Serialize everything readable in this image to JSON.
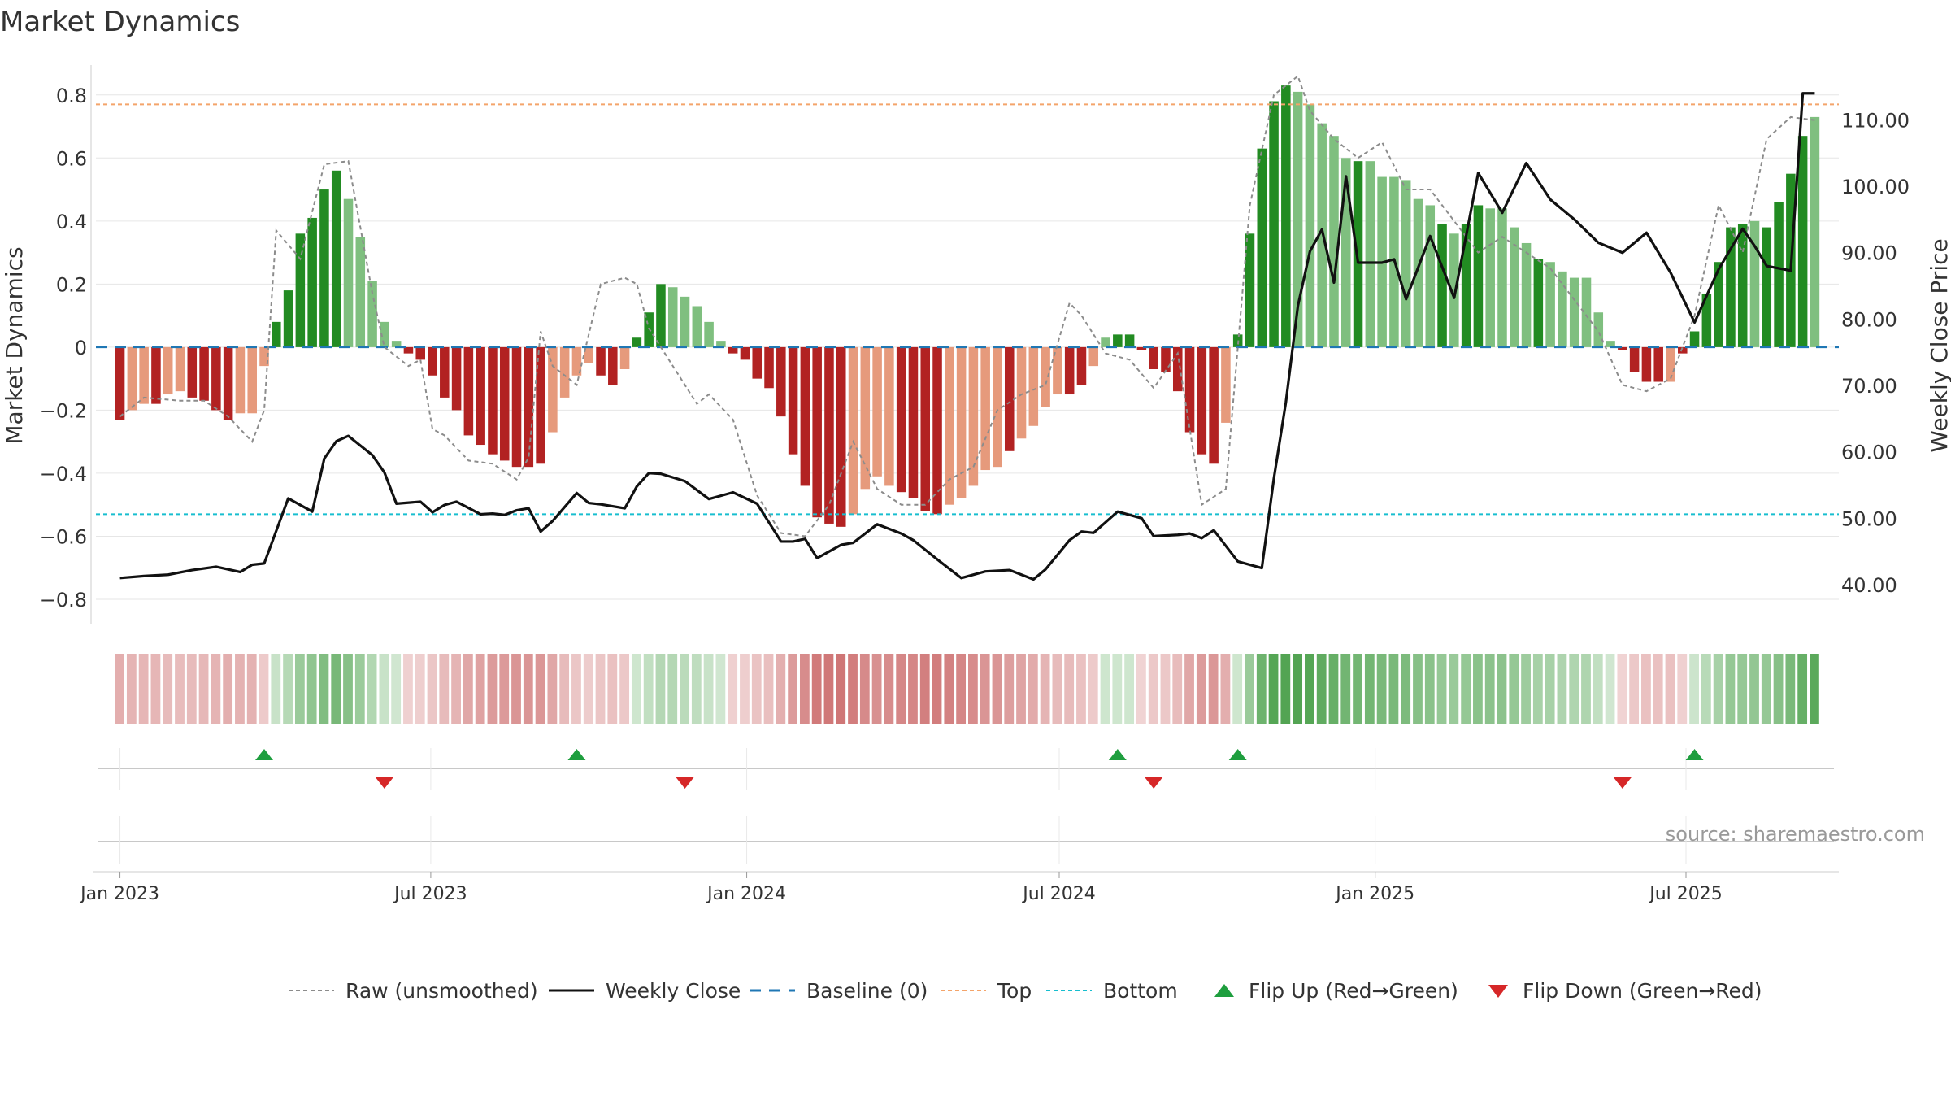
{
  "chart_data": {
    "type": "bar",
    "title": "Market Dynamics",
    "ylabel": "Market Dynamics",
    "y2label": "Weekly Close Price",
    "xlabel": "",
    "ylim": [
      -0.88,
      0.9
    ],
    "y2lim": [
      34.0,
      118.5
    ],
    "yticks": [
      0.8,
      0.6,
      0.4,
      0.2,
      0,
      -0.2,
      -0.4,
      -0.6,
      -0.8
    ],
    "ytick_labels": [
      "0.8",
      "0.6",
      "0.4",
      "0.2",
      "0",
      "−0.2",
      "−0.4",
      "−0.6",
      "−0.8"
    ],
    "y2ticks": [
      110,
      100,
      90,
      80,
      70,
      60,
      50,
      40
    ],
    "y2tick_labels": [
      "110.00",
      "100.00",
      "90.00",
      "80.00",
      "70.00",
      "60.00",
      "50.00",
      "40.00"
    ],
    "xrange": [
      "2022-12-18",
      "2025-09-28"
    ],
    "xticks": [
      "2023-01-01",
      "2023-07-01",
      "2024-01-01",
      "2024-07-01",
      "2025-01-01",
      "2025-07-01"
    ],
    "xtick_labels": [
      "Jan 2023",
      "Jul 2023",
      "Jan 2024",
      "Jul 2024",
      "Jan 2025",
      "Jul 2025"
    ],
    "grid": true,
    "legend_position": "bottom-center",
    "reference_lines": {
      "top": 0.77,
      "bottom": -0.53,
      "baseline": 0
    },
    "colors": {
      "strong_green": "#228b22",
      "weak_green": "#7fbf7f",
      "strong_red": "#b22222",
      "weak_red": "#e69a7c",
      "close_line": "#111111",
      "raw_line": "#8c8c8c",
      "baseline": "#1f77b4",
      "top_line": "#f4a46a",
      "bottom_line": "#17becf",
      "flip_up": "#1e9e3e",
      "flip_down": "#d62728"
    },
    "legend": [
      {
        "label": "Raw (unsmoothed)",
        "style": "dotted",
        "color": "#8c8c8c"
      },
      {
        "label": "Weekly Close",
        "style": "solid",
        "color": "#111111"
      },
      {
        "label": "Baseline (0)",
        "style": "dashed",
        "color": "#1f77b4"
      },
      {
        "label": "Top",
        "style": "dotted",
        "color": "#f4a46a"
      },
      {
        "label": "Bottom",
        "style": "dotted",
        "color": "#17becf"
      },
      {
        "label": "Flip Up (Red→Green)",
        "style": "triangle-up",
        "color": "#1e9e3e"
      },
      {
        "label": "Flip Down (Green→Red)",
        "style": "triangle-down",
        "color": "#d62728"
      }
    ],
    "flip_up": [
      "2023-03-26",
      "2023-09-24",
      "2024-08-04",
      "2024-10-13",
      "2025-07-06"
    ],
    "flip_down": [
      "2023-06-04",
      "2023-11-26",
      "2024-08-25",
      "2025-05-25"
    ],
    "series": [
      {
        "name": "Market Dynamics",
        "kind": "bar",
        "dates": [
          "2023-01-01",
          "2023-01-08",
          "2023-01-15",
          "2023-01-22",
          "2023-01-29",
          "2023-02-05",
          "2023-02-12",
          "2023-02-19",
          "2023-02-26",
          "2023-03-05",
          "2023-03-12",
          "2023-03-19",
          "2023-03-26",
          "2023-04-02",
          "2023-04-09",
          "2023-04-16",
          "2023-04-23",
          "2023-04-30",
          "2023-05-07",
          "2023-05-14",
          "2023-05-21",
          "2023-05-28",
          "2023-06-04",
          "2023-06-11",
          "2023-06-18",
          "2023-06-25",
          "2023-07-02",
          "2023-07-09",
          "2023-07-16",
          "2023-07-23",
          "2023-07-30",
          "2023-08-06",
          "2023-08-13",
          "2023-08-20",
          "2023-08-27",
          "2023-09-03",
          "2023-09-10",
          "2023-09-17",
          "2023-09-24",
          "2023-10-01",
          "2023-10-08",
          "2023-10-15",
          "2023-10-22",
          "2023-10-29",
          "2023-11-05",
          "2023-11-12",
          "2023-11-19",
          "2023-11-26",
          "2023-12-03",
          "2023-12-10",
          "2023-12-17",
          "2023-12-24",
          "2023-12-31",
          "2024-01-07",
          "2024-01-14",
          "2024-01-21",
          "2024-01-28",
          "2024-02-04",
          "2024-02-11",
          "2024-02-18",
          "2024-02-25",
          "2024-03-03",
          "2024-03-10",
          "2024-03-17",
          "2024-03-24",
          "2024-03-31",
          "2024-04-07",
          "2024-04-14",
          "2024-04-21",
          "2024-04-28",
          "2024-05-05",
          "2024-05-12",
          "2024-05-19",
          "2024-05-26",
          "2024-06-02",
          "2024-06-09",
          "2024-06-16",
          "2024-06-23",
          "2024-06-30",
          "2024-07-07",
          "2024-07-14",
          "2024-07-21",
          "2024-07-28",
          "2024-08-04",
          "2024-08-11",
          "2024-08-18",
          "2024-08-25",
          "2024-09-01",
          "2024-09-08",
          "2024-09-15",
          "2024-09-22",
          "2024-09-29",
          "2024-10-06",
          "2024-10-13",
          "2024-10-20",
          "2024-10-27",
          "2024-11-03",
          "2024-11-10",
          "2024-11-17",
          "2024-11-24",
          "2024-12-01",
          "2024-12-08",
          "2024-12-15",
          "2024-12-22",
          "2024-12-29",
          "2025-01-05",
          "2025-01-12",
          "2025-01-19",
          "2025-01-26",
          "2025-02-02",
          "2025-02-09",
          "2025-02-16",
          "2025-02-23",
          "2025-03-02",
          "2025-03-09",
          "2025-03-16",
          "2025-03-23",
          "2025-03-30",
          "2025-04-06",
          "2025-04-13",
          "2025-04-20",
          "2025-04-27",
          "2025-05-04",
          "2025-05-11",
          "2025-05-18",
          "2025-05-25",
          "2025-06-01",
          "2025-06-08",
          "2025-06-15",
          "2025-06-22",
          "2025-06-29",
          "2025-07-06",
          "2025-07-13",
          "2025-07-20",
          "2025-07-27",
          "2025-08-03",
          "2025-08-10",
          "2025-08-17",
          "2025-08-24",
          "2025-08-31",
          "2025-09-07",
          "2025-09-14"
        ],
        "values": [
          -0.23,
          -0.2,
          -0.18,
          -0.18,
          -0.15,
          -0.14,
          -0.16,
          -0.17,
          -0.2,
          -0.23,
          -0.21,
          -0.21,
          -0.06,
          0.08,
          0.18,
          0.36,
          0.41,
          0.5,
          0.56,
          0.47,
          0.35,
          0.21,
          0.08,
          0.02,
          -0.02,
          -0.04,
          -0.09,
          -0.16,
          -0.2,
          -0.28,
          -0.31,
          -0.34,
          -0.36,
          -0.38,
          -0.38,
          -0.37,
          -0.27,
          -0.16,
          -0.09,
          -0.05,
          -0.09,
          -0.12,
          -0.07,
          0.03,
          0.11,
          0.2,
          0.19,
          0.16,
          0.13,
          0.08,
          0.02,
          -0.02,
          -0.04,
          -0.1,
          -0.13,
          -0.22,
          -0.34,
          -0.44,
          -0.54,
          -0.56,
          -0.57,
          -0.53,
          -0.45,
          -0.41,
          -0.44,
          -0.46,
          -0.48,
          -0.52,
          -0.53,
          -0.5,
          -0.48,
          -0.44,
          -0.39,
          -0.38,
          -0.33,
          -0.29,
          -0.25,
          -0.19,
          -0.15,
          -0.15,
          -0.12,
          -0.06,
          0.03,
          0.04,
          0.04,
          -0.01,
          -0.07,
          -0.08,
          -0.14,
          -0.27,
          -0.34,
          -0.37,
          -0.24,
          0.04,
          0.36,
          0.63,
          0.78,
          0.83,
          0.81,
          0.77,
          0.71,
          0.67,
          0.6,
          0.59,
          0.59,
          0.54,
          0.54,
          0.53,
          0.47,
          0.45,
          0.39,
          0.36,
          0.39,
          0.45,
          0.44,
          0.44,
          0.38,
          0.33,
          0.28,
          0.27,
          0.24,
          0.22,
          0.22,
          0.11,
          0.02,
          -0.01,
          -0.08,
          -0.11,
          -0.11,
          -0.11,
          -0.02,
          0.05,
          0.17,
          0.27,
          0.38,
          0.39,
          0.4,
          0.38,
          0.46,
          0.55,
          0.67,
          0.73
        ],
        "strength": [
          "strong",
          "weak",
          "weak",
          "strong",
          "weak",
          "weak",
          "strong",
          "strong",
          "strong",
          "strong",
          "weak",
          "weak",
          "weak",
          "strong",
          "strong",
          "strong",
          "strong",
          "strong",
          "strong",
          "weak",
          "weak",
          "weak",
          "weak",
          "weak",
          "strong",
          "strong",
          "strong",
          "strong",
          "strong",
          "strong",
          "strong",
          "strong",
          "strong",
          "strong",
          "strong",
          "strong",
          "weak",
          "weak",
          "weak",
          "weak",
          "strong",
          "strong",
          "weak",
          "strong",
          "strong",
          "strong",
          "weak",
          "weak",
          "weak",
          "weak",
          "weak",
          "strong",
          "strong",
          "strong",
          "strong",
          "strong",
          "strong",
          "strong",
          "strong",
          "strong",
          "strong",
          "weak",
          "weak",
          "weak",
          "weak",
          "strong",
          "strong",
          "strong",
          "strong",
          "weak",
          "weak",
          "weak",
          "weak",
          "weak",
          "strong",
          "weak",
          "weak",
          "weak",
          "weak",
          "strong",
          "strong",
          "weak",
          "weak",
          "strong",
          "strong",
          "strong",
          "strong",
          "strong",
          "strong",
          "strong",
          "strong",
          "strong",
          "weak",
          "strong",
          "strong",
          "strong",
          "strong",
          "strong",
          "weak",
          "weak",
          "weak",
          "weak",
          "weak",
          "strong",
          "weak",
          "weak",
          "weak",
          "weak",
          "weak",
          "weak",
          "strong",
          "weak",
          "strong",
          "strong",
          "weak",
          "weak",
          "weak",
          "weak",
          "strong",
          "weak",
          "weak",
          "weak",
          "weak",
          "weak",
          "weak",
          "strong",
          "strong",
          "strong",
          "strong",
          "weak",
          "strong",
          "strong",
          "strong",
          "strong",
          "strong",
          "strong",
          "weak",
          "strong",
          "strong",
          "strong",
          "strong"
        ]
      },
      {
        "name": "Raw (unsmoothed)",
        "kind": "line",
        "style": "dotted",
        "dates": [
          "2023-01-01",
          "2023-01-15",
          "2023-02-05",
          "2023-02-19",
          "2023-03-05",
          "2023-03-19",
          "2023-03-26",
          "2023-04-02",
          "2023-04-16",
          "2023-04-30",
          "2023-05-14",
          "2023-05-28",
          "2023-06-04",
          "2023-06-18",
          "2023-06-25",
          "2023-07-02",
          "2023-07-09",
          "2023-07-23",
          "2023-08-06",
          "2023-08-20",
          "2023-08-27",
          "2023-09-03",
          "2023-09-10",
          "2023-09-24",
          "2023-10-08",
          "2023-10-22",
          "2023-10-29",
          "2023-11-05",
          "2023-11-19",
          "2023-12-03",
          "2023-12-10",
          "2023-12-24",
          "2024-01-07",
          "2024-01-21",
          "2024-02-04",
          "2024-02-18",
          "2024-03-03",
          "2024-03-17",
          "2024-03-31",
          "2024-04-14",
          "2024-04-28",
          "2024-05-12",
          "2024-05-26",
          "2024-06-09",
          "2024-06-23",
          "2024-07-07",
          "2024-07-14",
          "2024-07-28",
          "2024-08-11",
          "2024-08-25",
          "2024-09-08",
          "2024-09-22",
          "2024-10-06",
          "2024-10-20",
          "2024-11-03",
          "2024-11-17",
          "2024-11-24",
          "2024-12-08",
          "2024-12-22",
          "2025-01-05",
          "2025-01-19",
          "2025-02-02",
          "2025-02-16",
          "2025-03-02",
          "2025-03-16",
          "2025-03-30",
          "2025-04-13",
          "2025-04-27",
          "2025-05-11",
          "2025-05-25",
          "2025-06-08",
          "2025-06-22",
          "2025-07-06",
          "2025-07-20",
          "2025-08-03",
          "2025-08-17",
          "2025-08-31",
          "2025-09-14"
        ],
        "values": [
          -0.22,
          -0.16,
          -0.17,
          -0.17,
          -0.22,
          -0.3,
          -0.2,
          0.37,
          0.28,
          0.58,
          0.59,
          0.17,
          0.0,
          -0.06,
          -0.04,
          -0.26,
          -0.28,
          -0.36,
          -0.37,
          -0.42,
          -0.35,
          0.05,
          -0.06,
          -0.12,
          0.2,
          0.22,
          0.2,
          0.06,
          -0.06,
          -0.18,
          -0.15,
          -0.23,
          -0.47,
          -0.59,
          -0.6,
          -0.5,
          -0.3,
          -0.45,
          -0.5,
          -0.5,
          -0.42,
          -0.38,
          -0.2,
          -0.15,
          -0.12,
          0.14,
          0.1,
          -0.02,
          -0.04,
          -0.13,
          -0.02,
          -0.5,
          -0.45,
          0.45,
          0.8,
          0.86,
          0.75,
          0.66,
          0.6,
          0.65,
          0.5,
          0.5,
          0.4,
          0.3,
          0.35,
          0.3,
          0.25,
          0.15,
          0.05,
          -0.12,
          -0.14,
          -0.1,
          0.1,
          0.45,
          0.3,
          0.66,
          0.73,
          0.72
        ]
      },
      {
        "name": "Weekly Close",
        "kind": "line",
        "axis": "right",
        "dates": [
          "2023-01-01",
          "2023-01-15",
          "2023-01-29",
          "2023-02-12",
          "2023-02-26",
          "2023-03-12",
          "2023-03-19",
          "2023-03-26",
          "2023-04-09",
          "2023-04-23",
          "2023-04-30",
          "2023-05-07",
          "2023-05-14",
          "2023-05-28",
          "2023-06-04",
          "2023-06-11",
          "2023-06-25",
          "2023-07-02",
          "2023-07-09",
          "2023-07-16",
          "2023-07-30",
          "2023-08-06",
          "2023-08-13",
          "2023-08-20",
          "2023-08-27",
          "2023-09-03",
          "2023-09-10",
          "2023-09-24",
          "2023-10-01",
          "2023-10-08",
          "2023-10-22",
          "2023-10-29",
          "2023-11-05",
          "2023-11-12",
          "2023-11-26",
          "2023-12-10",
          "2023-12-24",
          "2024-01-07",
          "2024-01-21",
          "2024-01-28",
          "2024-02-04",
          "2024-02-11",
          "2024-02-25",
          "2024-03-03",
          "2024-03-17",
          "2024-03-31",
          "2024-04-07",
          "2024-04-21",
          "2024-05-05",
          "2024-05-19",
          "2024-06-02",
          "2024-06-16",
          "2024-06-23",
          "2024-07-07",
          "2024-07-14",
          "2024-07-21",
          "2024-08-04",
          "2024-08-18",
          "2024-08-25",
          "2024-09-08",
          "2024-09-15",
          "2024-09-22",
          "2024-09-29",
          "2024-10-13",
          "2024-10-27",
          "2024-11-03",
          "2024-11-10",
          "2024-11-17",
          "2024-11-24",
          "2024-12-01",
          "2024-12-08",
          "2024-12-15",
          "2024-12-22",
          "2025-01-05",
          "2025-01-12",
          "2025-01-19",
          "2025-02-02",
          "2025-02-16",
          "2025-03-02",
          "2025-03-16",
          "2025-03-30",
          "2025-04-13",
          "2025-04-27",
          "2025-05-11",
          "2025-05-25",
          "2025-06-08",
          "2025-06-22",
          "2025-07-06",
          "2025-07-20",
          "2025-08-03",
          "2025-08-10",
          "2025-08-17",
          "2025-08-31",
          "2025-09-07",
          "2025-09-14"
        ],
        "values": [
          41.0,
          41.3,
          41.5,
          42.2,
          42.7,
          41.9,
          43.0,
          43.2,
          53.0,
          51.0,
          59.0,
          61.6,
          62.4,
          59.5,
          56.9,
          52.2,
          52.5,
          50.9,
          52.0,
          52.5,
          50.6,
          50.7,
          50.5,
          51.2,
          51.5,
          48.0,
          49.6,
          53.8,
          52.3,
          52.1,
          51.5,
          54.8,
          56.8,
          56.7,
          55.6,
          52.9,
          53.9,
          52.2,
          46.5,
          46.5,
          46.9,
          44.0,
          46.0,
          46.3,
          49.1,
          47.7,
          46.7,
          43.8,
          41.0,
          42.0,
          42.2,
          40.8,
          42.3,
          46.7,
          48.0,
          47.8,
          51.0,
          50.0,
          47.3,
          47.5,
          47.7,
          47.0,
          48.2,
          43.5,
          42.5,
          56.0,
          67.5,
          82.0,
          90.2,
          93.5,
          85.5,
          101.5,
          88.5,
          88.5,
          89.0,
          83.0,
          92.5,
          83.2,
          102.0,
          96.0,
          103.5,
          98.0,
          95.0,
          91.5,
          90.0,
          93.0,
          87.0,
          79.5,
          87.5,
          93.6,
          91.0,
          88.0,
          87.3,
          114.0,
          114.0
        ]
      }
    ]
  }
}
